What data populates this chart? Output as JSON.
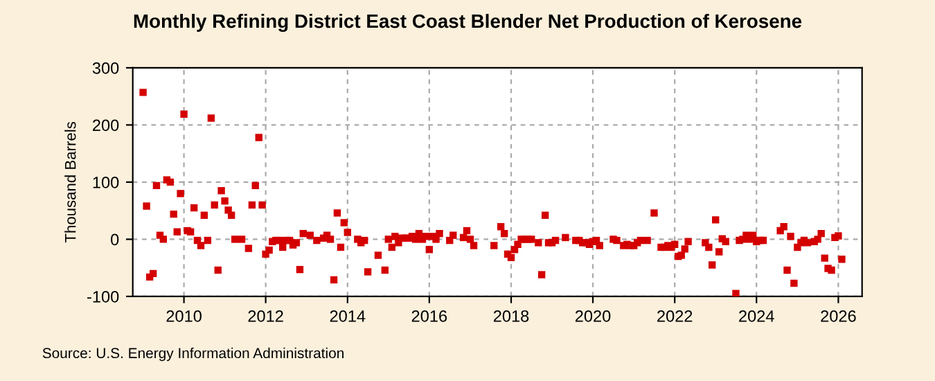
{
  "chart_data": {
    "type": "scatter",
    "title": "Monthly Refining District East Coast Blender Net Production of Kerosene",
    "ylabel": "Thousand Barrels",
    "annotations": [
      "Source: U.S. Energy Information Administration"
    ],
    "x": [
      "2009-01",
      "2009-02",
      "2009-03",
      "2009-04",
      "2009-05",
      "2009-06",
      "2009-07",
      "2009-08",
      "2009-09",
      "2009-10",
      "2009-11",
      "2009-12",
      "2010-01",
      "2010-02",
      "2010-03",
      "2010-04",
      "2010-05",
      "2010-06",
      "2010-07",
      "2010-08",
      "2010-09",
      "2010-10",
      "2010-11",
      "2010-12",
      "2011-01",
      "2011-02",
      "2011-03",
      "2011-04",
      "2011-06",
      "2011-08",
      "2011-09",
      "2011-10",
      "2011-11",
      "2011-12",
      "2012-01",
      "2012-02",
      "2012-03",
      "2012-04",
      "2012-05",
      "2012-06",
      "2012-07",
      "2012-08",
      "2012-09",
      "2012-10",
      "2012-11",
      "2012-12",
      "2013-02",
      "2013-04",
      "2013-06",
      "2013-07",
      "2013-08",
      "2013-09",
      "2013-10",
      "2013-11",
      "2013-12",
      "2014-01",
      "2014-04",
      "2014-05",
      "2014-06",
      "2014-07",
      "2014-10",
      "2014-12",
      "2015-01",
      "2015-02",
      "2015-03",
      "2015-04",
      "2015-05",
      "2015-06",
      "2015-07",
      "2015-08",
      "2015-09",
      "2015-10",
      "2015-11",
      "2015-12",
      "2016-01",
      "2016-02",
      "2016-03",
      "2016-04",
      "2016-07",
      "2016-08",
      "2016-11",
      "2016-12",
      "2017-01",
      "2017-02",
      "2017-08",
      "2017-10",
      "2017-11",
      "2017-12",
      "2018-01",
      "2018-02",
      "2018-03",
      "2018-04",
      "2018-05",
      "2018-06",
      "2018-07",
      "2018-09",
      "2018-10",
      "2018-11",
      "2018-12",
      "2019-01",
      "2019-02",
      "2019-05",
      "2019-08",
      "2019-09",
      "2019-10",
      "2019-11",
      "2019-12",
      "2020-01",
      "2020-02",
      "2020-03",
      "2020-07",
      "2020-08",
      "2020-10",
      "2020-11",
      "2020-12",
      "2021-01",
      "2021-02",
      "2021-03",
      "2021-05",
      "2021-07",
      "2021-09",
      "2021-10",
      "2021-11",
      "2021-12",
      "2022-01",
      "2022-02",
      "2022-03",
      "2022-04",
      "2022-05",
      "2022-10",
      "2022-11",
      "2022-12",
      "2023-01",
      "2023-02",
      "2023-03",
      "2023-04",
      "2023-07",
      "2023-08",
      "2023-09",
      "2023-10",
      "2023-11",
      "2023-12",
      "2024-01",
      "2024-02",
      "2024-03",
      "2024-08",
      "2024-09",
      "2024-10",
      "2024-11",
      "2024-12",
      "2025-01",
      "2025-02",
      "2025-03",
      "2025-04",
      "2025-06",
      "2025-07",
      "2025-08",
      "2025-09",
      "2025-10",
      "2025-11",
      "2025-12",
      "2026-01",
      "2026-02"
    ],
    "series": [
      {
        "color": "#d40000",
        "values": [
          257,
          58,
          -66,
          -60,
          94,
          7,
          0,
          104,
          100,
          44,
          13,
          80,
          219,
          15,
          13,
          55,
          -2,
          -11,
          42,
          -2,
          212,
          60,
          -54,
          85,
          67,
          51,
          42,
          0,
          0,
          -16,
          60,
          94,
          178,
          60,
          -26,
          -19,
          -4,
          -2,
          -2,
          -14,
          -2,
          -2,
          -10,
          -6,
          -53,
          10,
          7,
          -2,
          2,
          7,
          0,
          -71,
          46,
          -14,
          29,
          12,
          0,
          -6,
          -2,
          -57,
          -28,
          -54,
          0,
          -14,
          5,
          -6,
          2,
          2,
          2,
          5,
          0,
          10,
          0,
          5,
          -18,
          5,
          0,
          10,
          -2,
          7,
          3,
          15,
          0,
          -11,
          -11,
          22,
          10,
          -26,
          -32,
          -18,
          -9,
          0,
          0,
          0,
          0,
          -6,
          -62,
          42,
          -6,
          -6,
          -2,
          3,
          -2,
          -2,
          -6,
          -6,
          -9,
          -4,
          -2,
          -11,
          0,
          -2,
          -11,
          -9,
          -11,
          -11,
          -6,
          -2,
          -2,
          46,
          -14,
          -14,
          -11,
          -14,
          -9,
          -30,
          -28,
          -17,
          -4,
          -6,
          -14,
          -45,
          34,
          -22,
          1,
          -4,
          -95,
          -2,
          0,
          7,
          0,
          7,
          -4,
          -2,
          -2,
          15,
          22,
          -54,
          5,
          -77,
          -14,
          -6,
          -2,
          -6,
          -4,
          0,
          10,
          -33,
          -51,
          -54,
          3,
          6,
          -35
        ]
      }
    ],
    "xlim": [
      "2008-10",
      "2026-08"
    ],
    "xticks": [
      "2010",
      "2012",
      "2014",
      "2016",
      "2018",
      "2020",
      "2022",
      "2024",
      "2026"
    ],
    "ylim": [
      -100,
      300
    ],
    "yticks": [
      -100,
      0,
      100,
      200,
      300
    ],
    "grid": true,
    "marker": "square"
  }
}
